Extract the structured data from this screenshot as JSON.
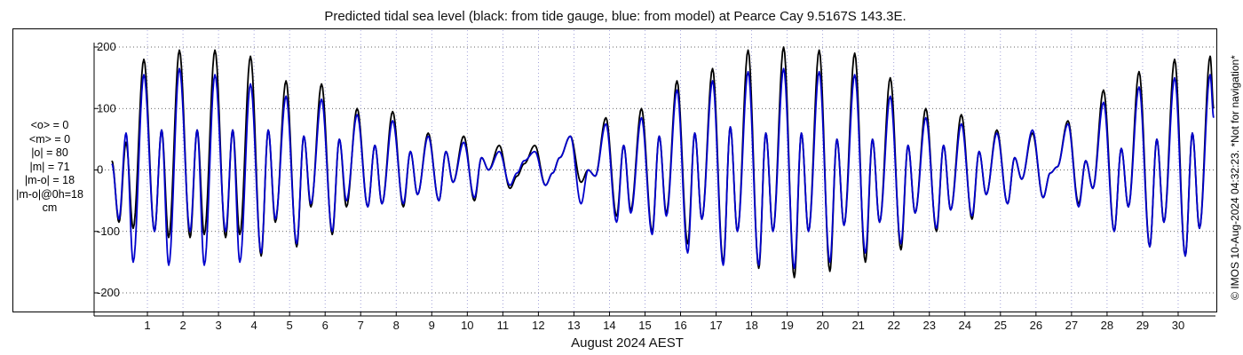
{
  "chart_data": {
    "type": "line",
    "title": "Predicted tidal sea level (black: from tide gauge, blue: from model) at Pearce Cay 9.5167S 143.3E.",
    "xlabel": "August 2024 AEST",
    "ylabel": "",
    "x_ticks": [
      "1",
      "2",
      "3",
      "4",
      "5",
      "6",
      "7",
      "8",
      "9",
      "10",
      "11",
      "12",
      "13",
      "14",
      "15",
      "16",
      "17",
      "18",
      "19",
      "20",
      "21",
      "22",
      "23",
      "24",
      "25",
      "26",
      "27",
      "28",
      "29",
      "30"
    ],
    "y_ticks": [
      200,
      100,
      0,
      -100,
      -200
    ],
    "xlim_days": [
      0,
      31
    ],
    "ylim": [
      -210,
      210
    ],
    "grid": "dotted",
    "x_units": "day of August 2024 (AEST)",
    "series": [
      {
        "name": "from tide gauge",
        "color": "#000000",
        "peaks": [
          [
            0.0,
            15
          ],
          [
            0.2,
            -85
          ],
          [
            0.4,
            45
          ],
          [
            0.6,
            -95
          ],
          [
            0.9,
            180
          ],
          [
            1.2,
            -100
          ],
          [
            1.4,
            65
          ],
          [
            1.6,
            -110
          ],
          [
            1.9,
            195
          ],
          [
            2.2,
            -110
          ],
          [
            2.4,
            65
          ],
          [
            2.6,
            -105
          ],
          [
            2.9,
            195
          ],
          [
            3.2,
            -110
          ],
          [
            3.4,
            65
          ],
          [
            3.6,
            -105
          ],
          [
            3.9,
            185
          ],
          [
            4.2,
            -140
          ],
          [
            4.4,
            65
          ],
          [
            4.6,
            -85
          ],
          [
            4.9,
            145
          ],
          [
            5.2,
            -125
          ],
          [
            5.4,
            55
          ],
          [
            5.6,
            -60
          ],
          [
            5.9,
            140
          ],
          [
            6.2,
            -105
          ],
          [
            6.4,
            50
          ],
          [
            6.6,
            -60
          ],
          [
            6.9,
            100
          ],
          [
            7.2,
            -60
          ],
          [
            7.4,
            40
          ],
          [
            7.6,
            -55
          ],
          [
            7.9,
            95
          ],
          [
            8.2,
            -60
          ],
          [
            8.4,
            30
          ],
          [
            8.6,
            -40
          ],
          [
            8.9,
            60
          ],
          [
            9.2,
            -50
          ],
          [
            9.4,
            30
          ],
          [
            9.6,
            -20
          ],
          [
            9.9,
            55
          ],
          [
            10.2,
            -50
          ],
          [
            10.4,
            20
          ],
          [
            10.6,
            0
          ],
          [
            10.9,
            40
          ],
          [
            11.2,
            -30
          ],
          [
            11.4,
            -10
          ],
          [
            11.6,
            10
          ],
          [
            11.9,
            40
          ],
          [
            12.2,
            -25
          ],
          [
            12.4,
            -5
          ],
          [
            12.6,
            20
          ],
          [
            12.9,
            55
          ],
          [
            13.2,
            -20
          ],
          [
            13.4,
            0
          ],
          [
            13.6,
            -10
          ],
          [
            13.9,
            85
          ],
          [
            14.2,
            -75
          ],
          [
            14.4,
            40
          ],
          [
            14.6,
            -65
          ],
          [
            14.9,
            100
          ],
          [
            15.2,
            -100
          ],
          [
            15.4,
            55
          ],
          [
            15.6,
            -70
          ],
          [
            15.9,
            145
          ],
          [
            16.2,
            -120
          ],
          [
            16.4,
            60
          ],
          [
            16.6,
            -80
          ],
          [
            16.9,
            165
          ],
          [
            17.2,
            -150
          ],
          [
            17.4,
            70
          ],
          [
            17.6,
            -100
          ],
          [
            17.9,
            195
          ],
          [
            18.2,
            -160
          ],
          [
            18.4,
            60
          ],
          [
            18.6,
            -100
          ],
          [
            18.9,
            200
          ],
          [
            19.2,
            -175
          ],
          [
            19.4,
            60
          ],
          [
            19.6,
            -100
          ],
          [
            19.9,
            195
          ],
          [
            20.2,
            -165
          ],
          [
            20.4,
            50
          ],
          [
            20.6,
            -90
          ],
          [
            20.9,
            190
          ],
          [
            21.2,
            -150
          ],
          [
            21.4,
            50
          ],
          [
            21.6,
            -85
          ],
          [
            21.9,
            150
          ],
          [
            22.2,
            -130
          ],
          [
            22.4,
            40
          ],
          [
            22.6,
            -70
          ],
          [
            22.9,
            100
          ],
          [
            23.2,
            -100
          ],
          [
            23.4,
            40
          ],
          [
            23.6,
            -65
          ],
          [
            23.9,
            90
          ],
          [
            24.2,
            -80
          ],
          [
            24.4,
            30
          ],
          [
            24.6,
            -40
          ],
          [
            24.9,
            65
          ],
          [
            25.2,
            -55
          ],
          [
            25.4,
            20
          ],
          [
            25.6,
            -15
          ],
          [
            25.9,
            60
          ],
          [
            26.2,
            -45
          ],
          [
            26.4,
            -5
          ],
          [
            26.6,
            5
          ],
          [
            26.9,
            80
          ],
          [
            27.2,
            -55
          ],
          [
            27.4,
            15
          ],
          [
            27.6,
            -30
          ],
          [
            27.9,
            130
          ],
          [
            28.2,
            -100
          ],
          [
            28.4,
            35
          ],
          [
            28.6,
            -60
          ],
          [
            28.9,
            160
          ],
          [
            29.2,
            -125
          ],
          [
            29.4,
            50
          ],
          [
            29.6,
            -85
          ],
          [
            29.9,
            180
          ],
          [
            30.2,
            -140
          ],
          [
            30.4,
            60
          ],
          [
            30.6,
            -95
          ],
          [
            30.9,
            185
          ],
          [
            31.0,
            100
          ]
        ]
      },
      {
        "name": "from model",
        "color": "#0000cc",
        "peaks": [
          [
            0.0,
            10
          ],
          [
            0.2,
            -80
          ],
          [
            0.4,
            60
          ],
          [
            0.6,
            -150
          ],
          [
            0.9,
            155
          ],
          [
            1.2,
            -100
          ],
          [
            1.4,
            65
          ],
          [
            1.6,
            -155
          ],
          [
            1.9,
            165
          ],
          [
            2.2,
            -100
          ],
          [
            2.4,
            65
          ],
          [
            2.6,
            -155
          ],
          [
            2.9,
            155
          ],
          [
            3.2,
            -100
          ],
          [
            3.4,
            65
          ],
          [
            3.6,
            -150
          ],
          [
            3.9,
            140
          ],
          [
            4.2,
            -135
          ],
          [
            4.4,
            65
          ],
          [
            4.6,
            -80
          ],
          [
            4.9,
            120
          ],
          [
            5.2,
            -120
          ],
          [
            5.4,
            55
          ],
          [
            5.6,
            -55
          ],
          [
            5.9,
            115
          ],
          [
            6.2,
            -100
          ],
          [
            6.4,
            50
          ],
          [
            6.6,
            -50
          ],
          [
            6.9,
            90
          ],
          [
            7.2,
            -60
          ],
          [
            7.4,
            40
          ],
          [
            7.6,
            -55
          ],
          [
            7.9,
            80
          ],
          [
            8.2,
            -55
          ],
          [
            8.4,
            30
          ],
          [
            8.6,
            -40
          ],
          [
            8.9,
            55
          ],
          [
            9.2,
            -50
          ],
          [
            9.4,
            30
          ],
          [
            9.6,
            -20
          ],
          [
            9.9,
            45
          ],
          [
            10.2,
            -45
          ],
          [
            10.4,
            20
          ],
          [
            10.6,
            0
          ],
          [
            10.9,
            30
          ],
          [
            11.2,
            -25
          ],
          [
            11.4,
            -5
          ],
          [
            11.6,
            15
          ],
          [
            11.9,
            30
          ],
          [
            12.2,
            -25
          ],
          [
            12.4,
            -5
          ],
          [
            12.6,
            20
          ],
          [
            12.9,
            55
          ],
          [
            13.2,
            -55
          ],
          [
            13.4,
            0
          ],
          [
            13.6,
            -10
          ],
          [
            13.9,
            75
          ],
          [
            14.2,
            -85
          ],
          [
            14.4,
            40
          ],
          [
            14.6,
            -70
          ],
          [
            14.9,
            85
          ],
          [
            15.2,
            -105
          ],
          [
            15.4,
            55
          ],
          [
            15.6,
            -75
          ],
          [
            15.9,
            130
          ],
          [
            16.2,
            -135
          ],
          [
            16.4,
            60
          ],
          [
            16.6,
            -80
          ],
          [
            16.9,
            145
          ],
          [
            17.2,
            -155
          ],
          [
            17.4,
            70
          ],
          [
            17.6,
            -100
          ],
          [
            17.9,
            160
          ],
          [
            18.2,
            -155
          ],
          [
            18.4,
            60
          ],
          [
            18.6,
            -100
          ],
          [
            18.9,
            165
          ],
          [
            19.2,
            -160
          ],
          [
            19.4,
            60
          ],
          [
            19.6,
            -100
          ],
          [
            19.9,
            160
          ],
          [
            20.2,
            -150
          ],
          [
            20.4,
            50
          ],
          [
            20.6,
            -90
          ],
          [
            20.9,
            155
          ],
          [
            21.2,
            -135
          ],
          [
            21.4,
            50
          ],
          [
            21.6,
            -85
          ],
          [
            21.9,
            120
          ],
          [
            22.2,
            -120
          ],
          [
            22.4,
            40
          ],
          [
            22.6,
            -70
          ],
          [
            22.9,
            85
          ],
          [
            23.2,
            -95
          ],
          [
            23.4,
            40
          ],
          [
            23.6,
            -65
          ],
          [
            23.9,
            75
          ],
          [
            24.2,
            -75
          ],
          [
            24.4,
            30
          ],
          [
            24.6,
            -40
          ],
          [
            24.9,
            60
          ],
          [
            25.2,
            -55
          ],
          [
            25.4,
            20
          ],
          [
            25.6,
            -15
          ],
          [
            25.9,
            65
          ],
          [
            26.2,
            -45
          ],
          [
            26.4,
            -5
          ],
          [
            26.6,
            5
          ],
          [
            26.9,
            75
          ],
          [
            27.2,
            -60
          ],
          [
            27.4,
            15
          ],
          [
            27.6,
            -30
          ],
          [
            27.9,
            110
          ],
          [
            28.2,
            -100
          ],
          [
            28.4,
            35
          ],
          [
            28.6,
            -60
          ],
          [
            28.9,
            135
          ],
          [
            29.2,
            -125
          ],
          [
            29.4,
            50
          ],
          [
            29.6,
            -85
          ],
          [
            29.9,
            150
          ],
          [
            30.2,
            -140
          ],
          [
            30.4,
            60
          ],
          [
            30.6,
            -95
          ],
          [
            30.9,
            155
          ],
          [
            31.0,
            85
          ]
        ]
      }
    ]
  },
  "stats": [
    "<o> = 0",
    "<m> = 0",
    "|o| = 80",
    "|m| = 71",
    "|m-o| = 18",
    "|m-o|@0h=18",
    "cm"
  ],
  "copyright": "© IMOS 10-Aug-2024 04:32:23. *Not for navigation*"
}
